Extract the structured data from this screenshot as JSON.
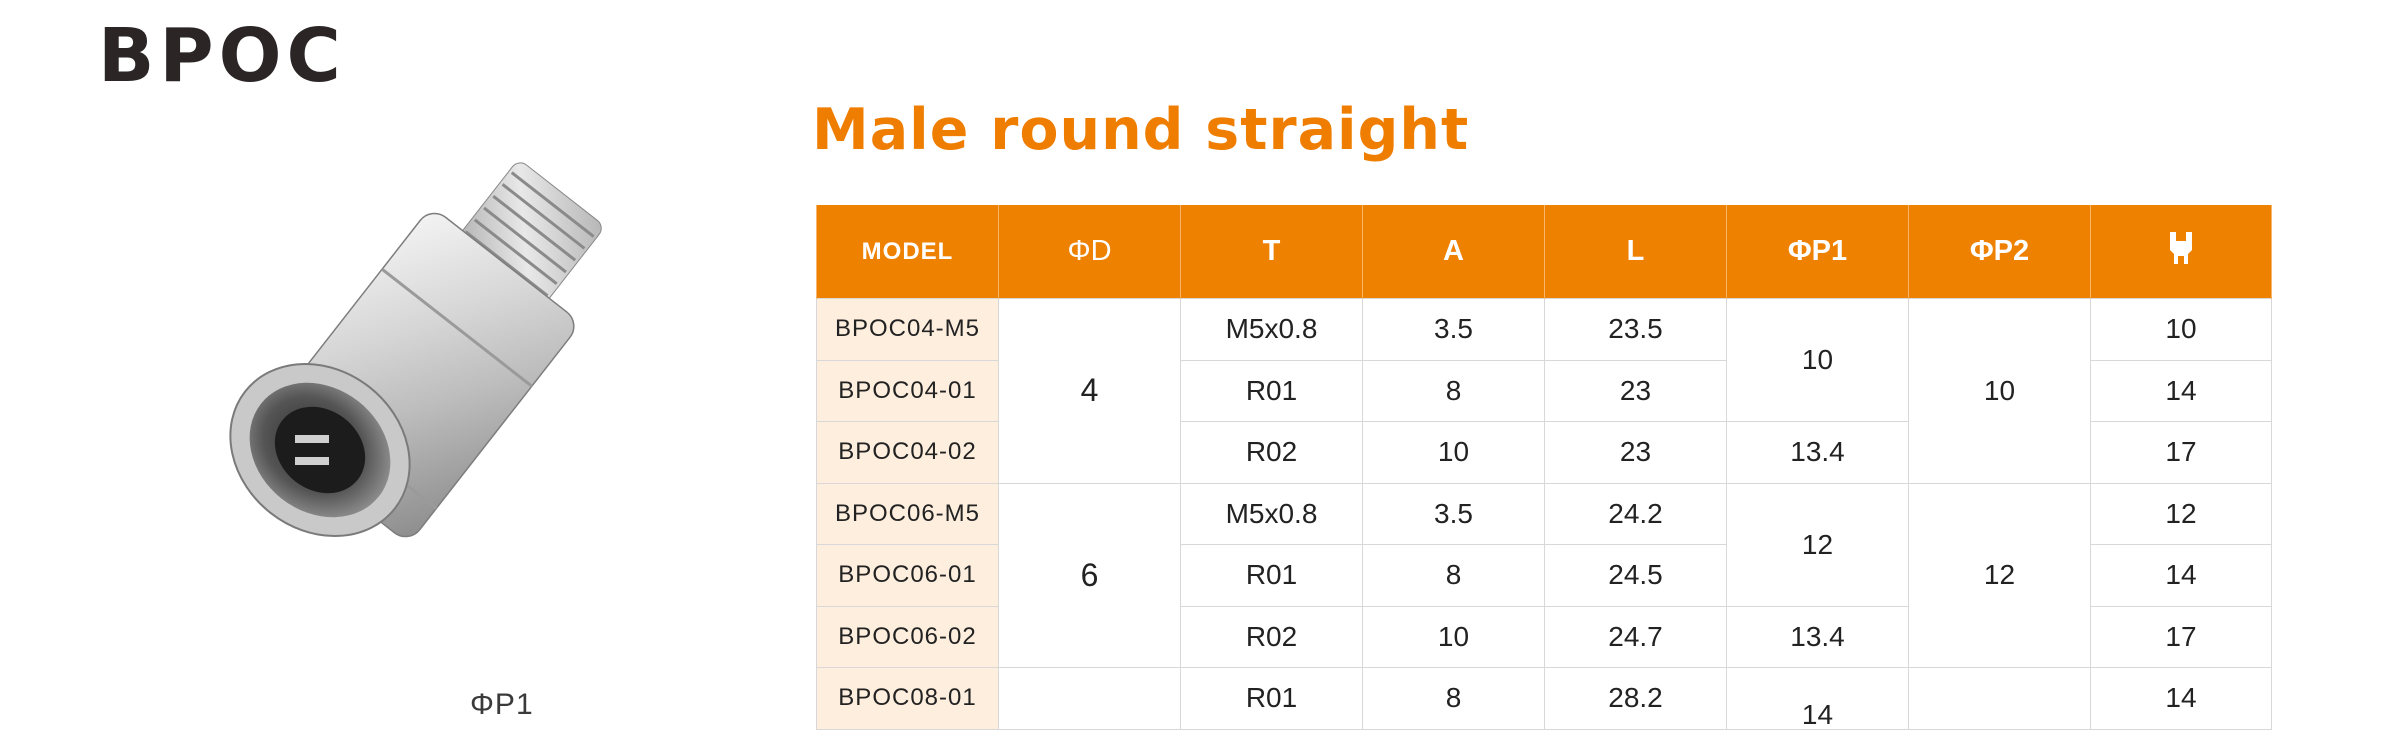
{
  "page_title": "BPOC",
  "product_heading": "Male round straight",
  "image_caption": "ΦP1",
  "icons": {
    "wrench": "wrench-icon"
  },
  "colors": {
    "accent": "#ef7d00",
    "model_cell_bg": "#fdeede",
    "title": "#2b2526"
  },
  "table": {
    "headers": [
      "MODEL",
      "ΦD",
      "T",
      "A",
      "L",
      "ΦP1",
      "ΦP2"
    ],
    "rows": [
      {
        "model": "BPOC04-M5",
        "T": "M5x0.8",
        "A": "3.5",
        "L": "23.5",
        "wrench": "10"
      },
      {
        "model": "BPOC04-01",
        "T": "R01",
        "A": "8",
        "L": "23",
        "wrench": "14"
      },
      {
        "model": "BPOC04-02",
        "T": "R02",
        "A": "10",
        "L": "23",
        "wrench": "17"
      },
      {
        "model": "BPOC06-M5",
        "T": "M5x0.8",
        "A": "3.5",
        "L": "24.2",
        "wrench": "12"
      },
      {
        "model": "BPOC06-01",
        "T": "R01",
        "A": "8",
        "L": "24.5",
        "wrench": "14"
      },
      {
        "model": "BPOC06-02",
        "T": "R02",
        "A": "10",
        "L": "24.7",
        "wrench": "17"
      },
      {
        "model": "BPOC08-01",
        "T": "R01",
        "A": "8",
        "L": "28.2",
        "wrench": "14"
      }
    ],
    "merged": {
      "D_group1": "4",
      "D_group2": "6",
      "P1_g1": "10",
      "P1_g2": "13.4",
      "P1_g3": "12",
      "P1_g4": "13.4",
      "P1_g5": "14",
      "P2_g1": "10",
      "P2_g2": "12"
    }
  }
}
